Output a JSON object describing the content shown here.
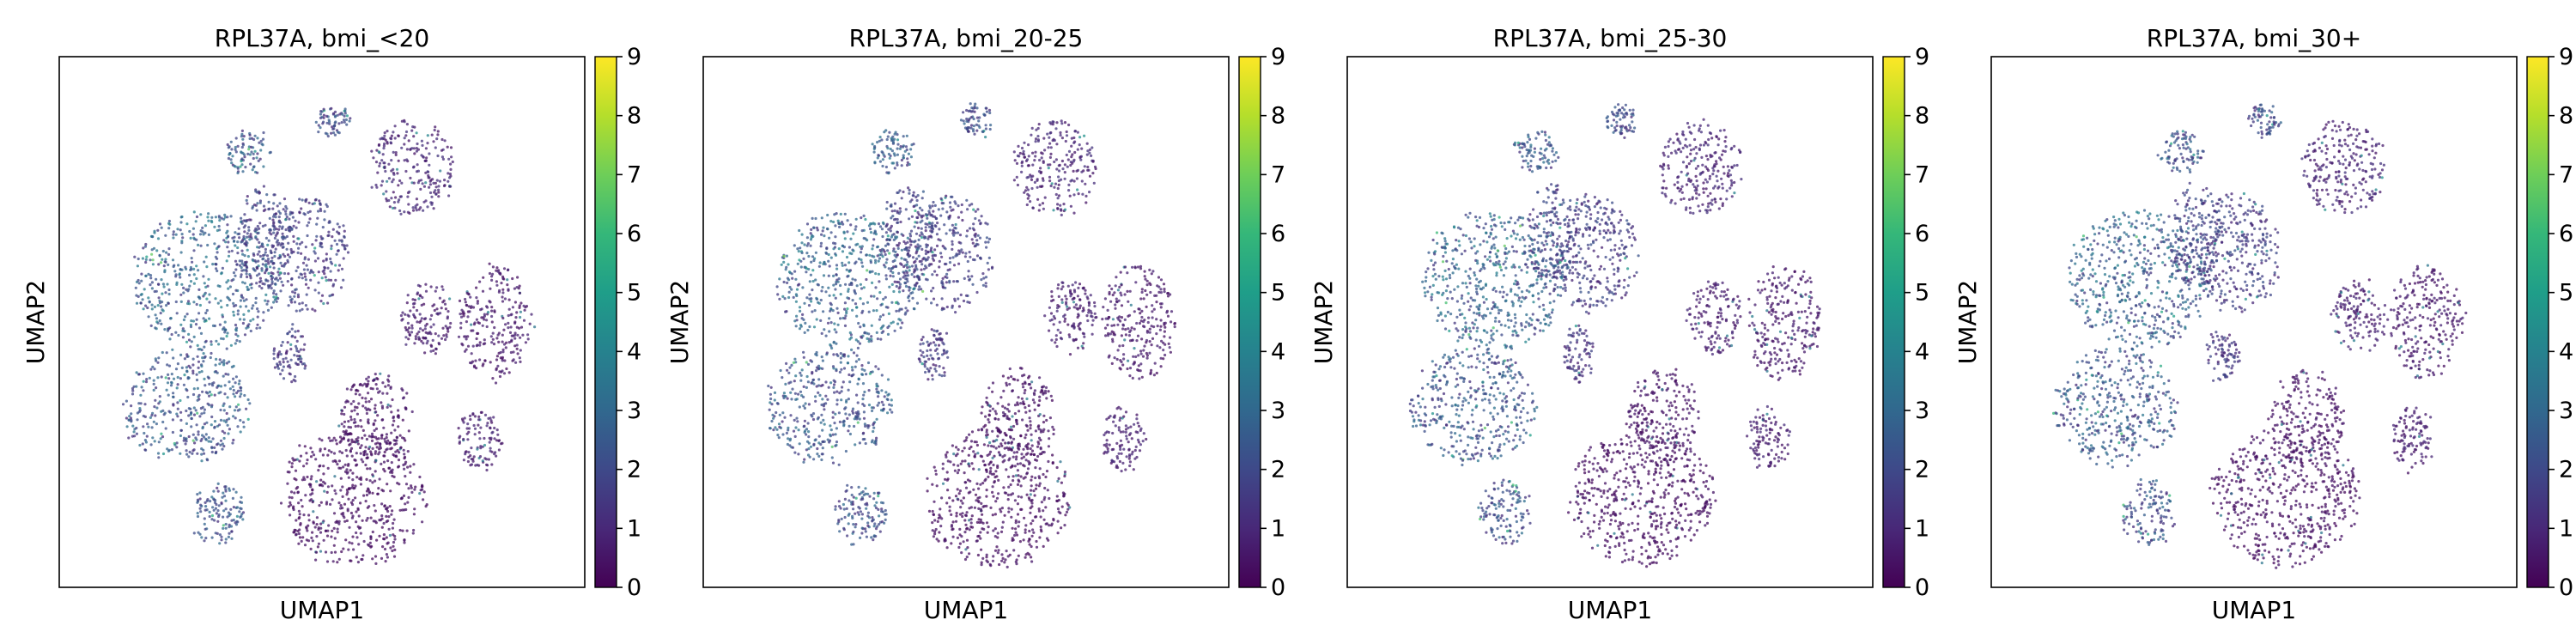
{
  "chart_data": [
    {
      "type": "scatter",
      "title": "RPL37A, bmi_<20",
      "xlabel": "UMAP1",
      "ylabel": "UMAP2",
      "colorbar": {
        "min": 0,
        "max": 9,
        "ticks": [
          "0",
          "1",
          "2",
          "3",
          "4",
          "5",
          "6",
          "7",
          "8",
          "9"
        ],
        "colormap": "viridis"
      },
      "grid": false,
      "expression_level": "low-moderate"
    },
    {
      "type": "scatter",
      "title": "RPL37A, bmi_20-25",
      "xlabel": "UMAP1",
      "ylabel": "UMAP2",
      "colorbar": {
        "min": 0,
        "max": 9,
        "ticks": [
          "0",
          "1",
          "2",
          "3",
          "4",
          "5",
          "6",
          "7",
          "8",
          "9"
        ],
        "colormap": "viridis"
      },
      "grid": false,
      "expression_level": "low-moderate"
    },
    {
      "type": "scatter",
      "title": "RPL37A, bmi_25-30",
      "xlabel": "UMAP1",
      "ylabel": "UMAP2",
      "colorbar": {
        "min": 0,
        "max": 9,
        "ticks": [
          "0",
          "1",
          "2",
          "3",
          "4",
          "5",
          "6",
          "7",
          "8",
          "9"
        ],
        "colormap": "viridis"
      },
      "grid": false,
      "expression_level": "low-moderate"
    },
    {
      "type": "scatter",
      "title": "RPL37A, bmi_30+",
      "xlabel": "UMAP1",
      "ylabel": "UMAP2",
      "colorbar": {
        "min": 0,
        "max": 9,
        "ticks": [
          "0",
          "1",
          "2",
          "3",
          "4",
          "5",
          "6",
          "7",
          "8",
          "9"
        ],
        "colormap": "viridis"
      },
      "grid": false,
      "expression_level": "low-moderate"
    }
  ],
  "colors": {
    "viridis_stops": [
      "#440154",
      "#482878",
      "#3e4989",
      "#31688e",
      "#26828e",
      "#1f9e89",
      "#35b779",
      "#6ece58",
      "#b5de2b",
      "#fde725"
    ],
    "frame": "#000000",
    "background": "#ffffff"
  }
}
